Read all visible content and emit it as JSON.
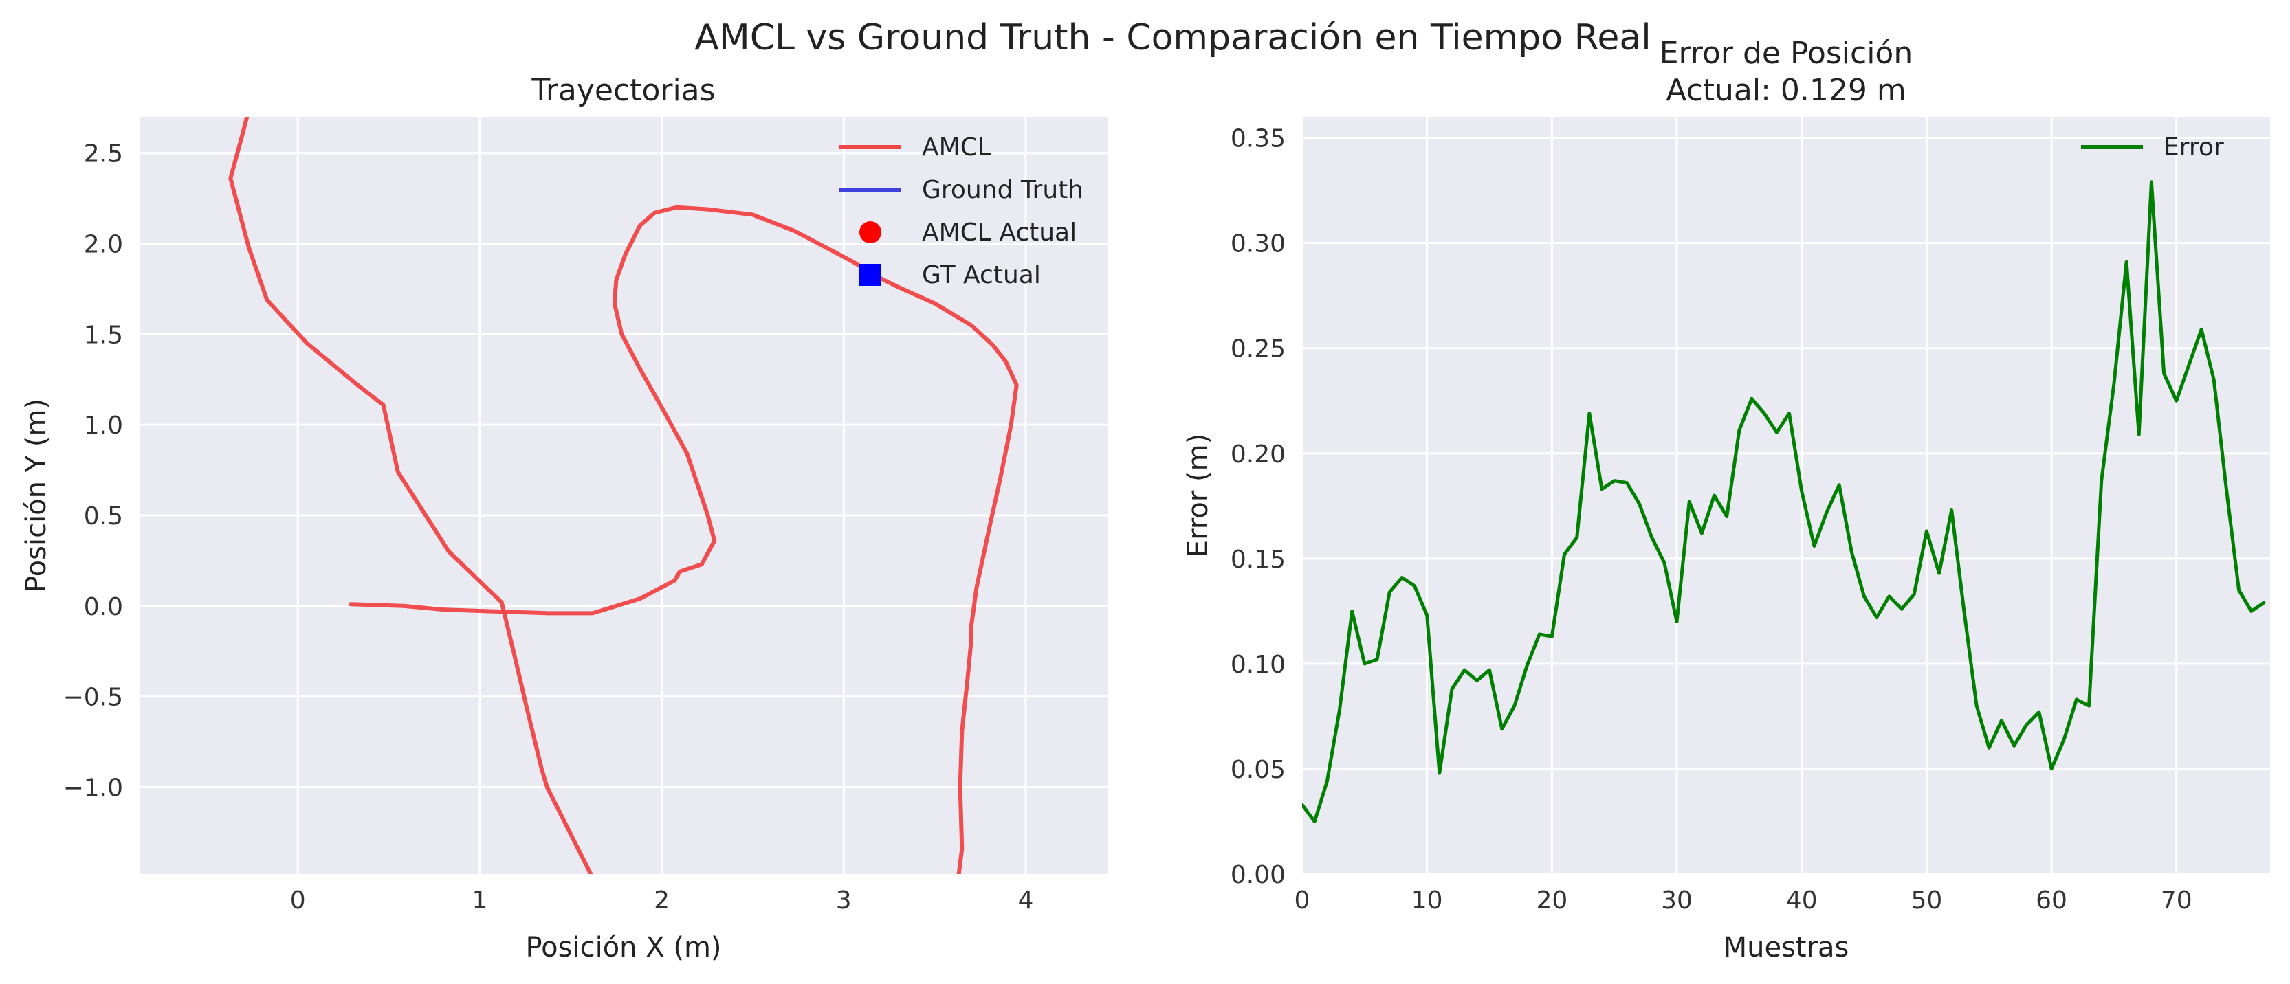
{
  "figure": {
    "suptitle": "AMCL vs Ground Truth - Comparación en Tiempo Real"
  },
  "colors": {
    "axes_bg": "#EAEAF2",
    "grid": "#FFFFFF",
    "amcl": "#F04545",
    "ground_truth": "#4040E0",
    "amcl_marker": "#FF0000",
    "gt_marker": "#0000FF",
    "error": "#008000"
  },
  "chart_data": [
    {
      "type": "line",
      "title": "Trayectorias",
      "xlabel": "Posición X (m)",
      "ylabel": "Posición Y (m)",
      "xlim": [
        -0.87,
        4.45
      ],
      "ylim": [
        -1.48,
        2.7
      ],
      "xticks": [
        0,
        1,
        2,
        3,
        4
      ],
      "xtick_labels": [
        "0",
        "1",
        "2",
        "3",
        "4"
      ],
      "yticks": [
        -1.0,
        -0.5,
        0.0,
        0.5,
        1.0,
        1.5,
        2.0,
        2.5
      ],
      "ytick_labels": [
        "−1.0",
        "−0.5",
        "0.0",
        "0.5",
        "1.0",
        "1.5",
        "2.0",
        "2.5"
      ],
      "grid": true,
      "legend_position": "top-right",
      "series": [
        {
          "name": "AMCL",
          "kind": "line",
          "x": [
            0.29,
            0.58,
            0.8,
            1.08,
            1.38,
            1.62,
            1.88,
            2.07,
            2.1,
            2.22,
            2.29,
            2.25,
            2.14,
            2.02,
            1.88,
            1.78,
            1.74,
            1.75,
            1.8,
            1.88,
            1.96,
            2.08,
            2.25,
            2.5,
            2.73,
            2.9,
            3.05,
            3.18,
            3.3,
            3.5,
            3.7,
            3.82,
            3.89,
            3.95,
            3.92,
            3.86,
            3.8,
            3.73,
            3.7,
            3.7,
            3.68,
            3.65,
            3.64,
            3.65,
            3.63
          ],
          "y": [
            0.01,
            0.0,
            -0.02,
            -0.03,
            -0.04,
            -0.04,
            0.04,
            0.14,
            0.19,
            0.23,
            0.36,
            0.51,
            0.84,
            1.06,
            1.31,
            1.5,
            1.67,
            1.8,
            1.94,
            2.1,
            2.17,
            2.2,
            2.19,
            2.16,
            2.07,
            1.98,
            1.9,
            1.82,
            1.76,
            1.67,
            1.55,
            1.44,
            1.35,
            1.22,
            1.0,
            0.7,
            0.43,
            0.1,
            -0.12,
            -0.2,
            -0.41,
            -0.69,
            -1.0,
            -1.34,
            -1.5
          ]
        },
        {
          "name": "AMCL",
          "kind": "line",
          "x": [
            1.62,
            1.47,
            1.37,
            1.34,
            1.26,
            1.19,
            1.12,
            0.83,
            0.55,
            0.47,
            0.34,
            0.05,
            -0.17,
            -0.27,
            -0.37,
            -0.3,
            -0.28
          ],
          "y": [
            -1.5,
            -1.2,
            -1.0,
            -0.9,
            -0.57,
            -0.27,
            0.02,
            0.3,
            0.74,
            1.11,
            1.21,
            1.45,
            1.69,
            1.98,
            2.36,
            2.62,
            2.7
          ]
        }
      ],
      "legend": [
        {
          "label": "AMCL",
          "kind": "line",
          "color_key": "amcl"
        },
        {
          "label": "Ground Truth",
          "kind": "line",
          "color_key": "ground_truth"
        },
        {
          "label": "AMCL Actual",
          "kind": "circle",
          "color_key": "amcl_marker"
        },
        {
          "label": "GT Actual",
          "kind": "square",
          "color_key": "gt_marker"
        }
      ]
    },
    {
      "type": "line",
      "title": "Error de Posición",
      "subtitle": "Actual: 0.129 m",
      "xlabel": "Muestras",
      "ylabel": "Error (m)",
      "xlim": [
        0,
        77.5
      ],
      "ylim": [
        0.0,
        0.36
      ],
      "xticks": [
        0,
        10,
        20,
        30,
        40,
        50,
        60,
        70
      ],
      "xtick_labels": [
        "0",
        "10",
        "20",
        "30",
        "40",
        "50",
        "60",
        "70"
      ],
      "yticks": [
        0.0,
        0.05,
        0.1,
        0.15,
        0.2,
        0.25,
        0.3,
        0.35
      ],
      "ytick_labels": [
        "0.00",
        "0.05",
        "0.10",
        "0.15",
        "0.20",
        "0.25",
        "0.30",
        "0.35"
      ],
      "grid": true,
      "legend_position": "top-right",
      "series": [
        {
          "name": "Error",
          "x": [
            0,
            1,
            2,
            3,
            4,
            5,
            6,
            7,
            8,
            9,
            10,
            11,
            12,
            13,
            14,
            15,
            16,
            17,
            18,
            19,
            20,
            21,
            22,
            23,
            24,
            25,
            26,
            27,
            28,
            29,
            30,
            31,
            32,
            33,
            34,
            35,
            36,
            37,
            38,
            39,
            40,
            41,
            42,
            43,
            44,
            45,
            46,
            47,
            48,
            49,
            50,
            51,
            52,
            53,
            54,
            55,
            56,
            57,
            58,
            59,
            60,
            61,
            62,
            63,
            64,
            65,
            66,
            67,
            68,
            69,
            70,
            71,
            72,
            73,
            74,
            75,
            76,
            77
          ],
          "values": [
            0.033,
            0.025,
            0.044,
            0.078,
            0.125,
            0.1,
            0.102,
            0.134,
            0.141,
            0.137,
            0.123,
            0.048,
            0.088,
            0.097,
            0.092,
            0.097,
            0.069,
            0.08,
            0.099,
            0.114,
            0.113,
            0.152,
            0.16,
            0.219,
            0.183,
            0.187,
            0.186,
            0.176,
            0.16,
            0.148,
            0.12,
            0.177,
            0.162,
            0.18,
            0.17,
            0.211,
            0.226,
            0.219,
            0.21,
            0.219,
            0.182,
            0.156,
            0.172,
            0.185,
            0.153,
            0.132,
            0.122,
            0.132,
            0.126,
            0.133,
            0.163,
            0.143,
            0.173,
            0.125,
            0.08,
            0.06,
            0.073,
            0.061,
            0.071,
            0.077,
            0.05,
            0.064,
            0.083,
            0.08,
            0.187,
            0.233,
            0.291,
            0.209,
            0.329,
            0.238,
            0.225,
            0.242,
            0.259,
            0.235,
            0.183,
            0.135,
            0.125,
            0.129
          ]
        }
      ],
      "legend": [
        {
          "label": "Error",
          "kind": "line",
          "color_key": "error"
        }
      ]
    }
  ]
}
